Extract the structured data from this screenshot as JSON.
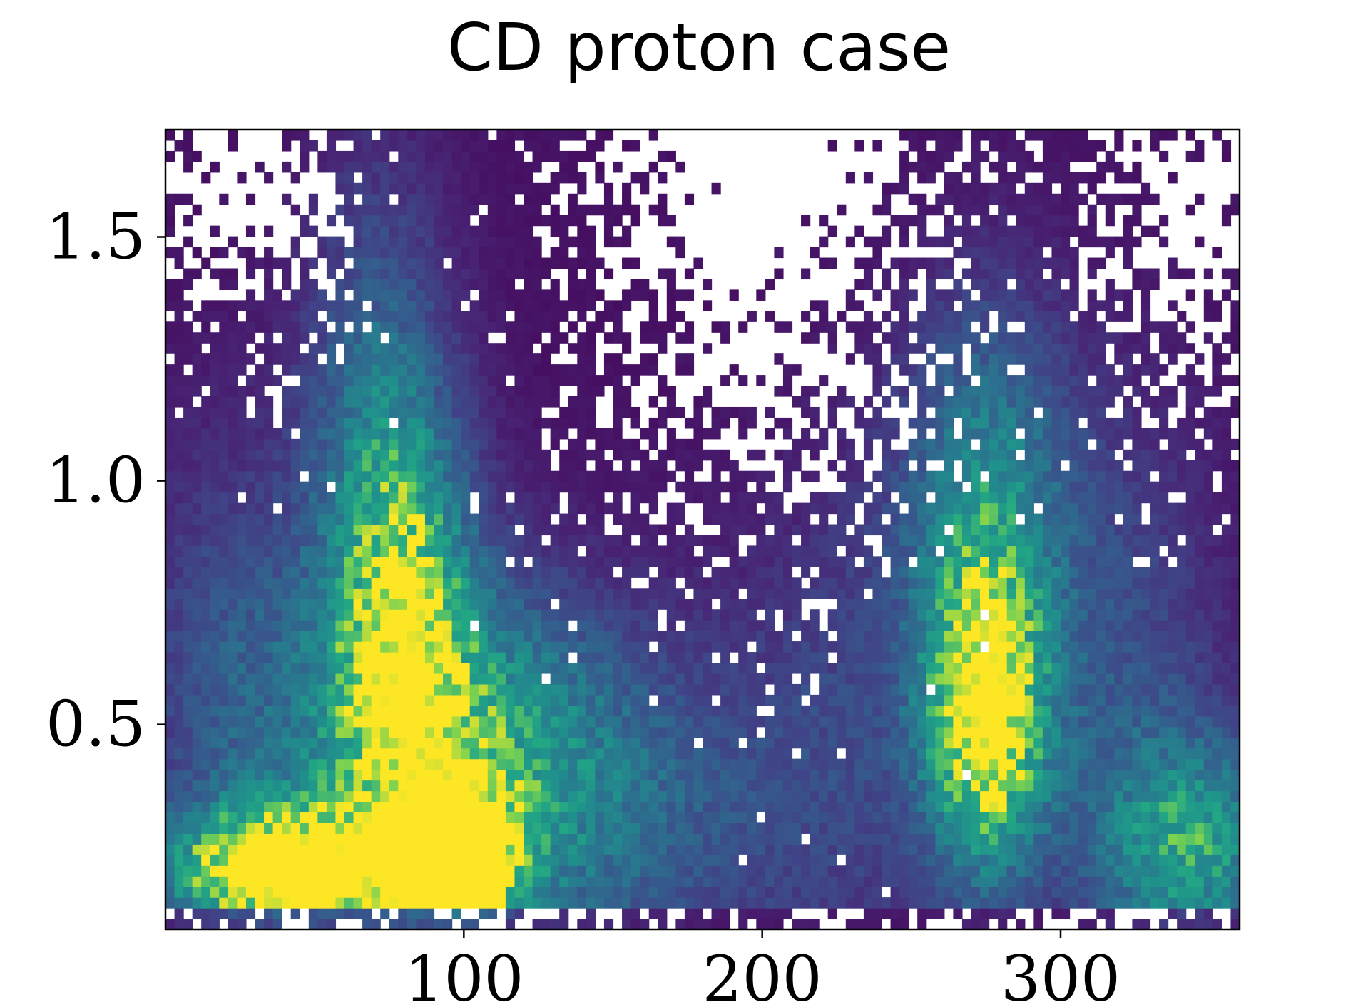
{
  "chart_data": {
    "type": "heatmap",
    "title": "CD proton case",
    "xlabel": "",
    "ylabel": "",
    "xlim": [
      0,
      360
    ],
    "ylim": [
      0.08,
      1.72
    ],
    "x_ticks": [
      {
        "value": 100,
        "label": "100"
      },
      {
        "value": 200,
        "label": "200"
      },
      {
        "value": 300,
        "label": "300"
      }
    ],
    "y_ticks": [
      {
        "value": 0.5,
        "label": "0.5"
      },
      {
        "value": 1.0,
        "label": "1.0"
      },
      {
        "value": 1.5,
        "label": "1.5"
      }
    ],
    "grid": false,
    "colormap": "viridis",
    "empty_bin_color": "#ffffff",
    "bins": {
      "x": 120,
      "y": 75
    },
    "density_regions": [
      {
        "x": 40,
        "y": 0.2,
        "weight": 1.0,
        "note": "peak"
      },
      {
        "x": 97,
        "y": 0.22,
        "weight": 1.0,
        "note": "peak"
      },
      {
        "x": 275,
        "y": 0.47,
        "weight": 0.9,
        "note": "peak"
      },
      {
        "x": 80,
        "y": 0.7,
        "weight": 0.6
      },
      {
        "x": 345,
        "y": 0.25,
        "weight": 0.55
      },
      {
        "x": 270,
        "y": 0.9,
        "weight": 0.45
      }
    ]
  }
}
